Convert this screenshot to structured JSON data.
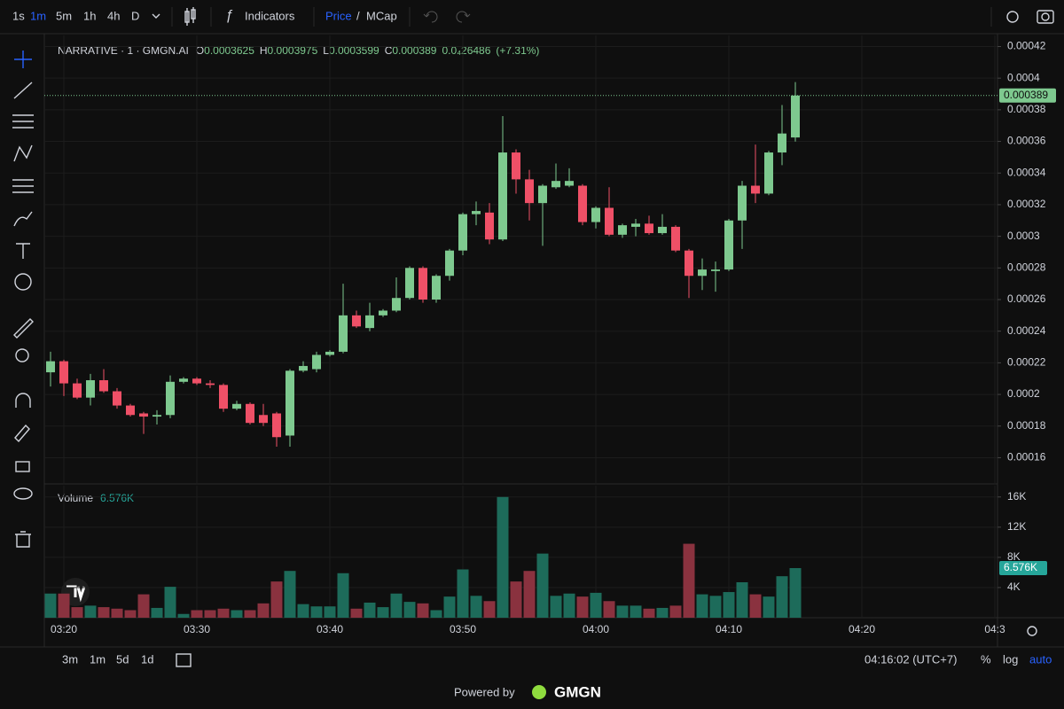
{
  "ui": {
    "intervals": [
      "1s",
      "1m",
      "5m",
      "1h",
      "4h",
      "D"
    ],
    "indicators": "Indicators",
    "price": "Price",
    "slash": "/",
    "mcap": "MCap",
    "ranges": [
      "3m",
      "1m",
      "5d",
      "1d"
    ],
    "clock": "04:16:02 (UTC+7)",
    "percent": "%",
    "log": "log",
    "auto": "auto",
    "powered_by": "Powered by",
    "brand": "GMGN"
  },
  "chart_data": {
    "type": "candlestick",
    "title": "NARRATIVE · 1 · GMGN.AI",
    "ohlc_labels": [
      "O",
      "H",
      "L",
      "C"
    ],
    "change": "0.0₄26486",
    "change_percent": "(+7.31%)",
    "volume_title": "Volume",
    "volume_value_label": "6.576K",
    "categories": [
      null,
      "03:20",
      null,
      null,
      null,
      null,
      null,
      null,
      null,
      null,
      null,
      "03:30",
      null,
      null,
      null,
      null,
      null,
      null,
      null,
      null,
      null,
      "03:40",
      null,
      null,
      null,
      null,
      null,
      null,
      null,
      null,
      null,
      "03:50",
      null,
      null,
      null,
      null,
      null,
      null,
      null,
      null,
      null,
      "04:00",
      null,
      null,
      null,
      null,
      null,
      null,
      null,
      null,
      null,
      "04:10",
      null,
      null,
      null,
      null,
      null
    ],
    "future_time_ticks": [
      "04:20",
      "04:3"
    ],
    "open": [
      0.000214,
      0.000221,
      0.000207,
      0.000198,
      0.000209,
      0.000202,
      0.000193,
      0.000188,
      0.000186,
      0.000187,
      0.000208,
      0.00021,
      0.000207,
      0.000206,
      0.000191,
      0.000194,
      0.000187,
      0.000188,
      0.000174,
      0.000215,
      0.000216,
      0.000225,
      0.000227,
      0.00025,
      0.000242,
      0.00025,
      0.000253,
      0.000261,
      0.00028,
      0.00026,
      0.000275,
      0.000291,
      0.000314,
      0.000315,
      0.000298,
      0.000353,
      0.000336,
      0.000321,
      0.000331,
      0.000332,
      0.000332,
      0.000309,
      0.000318,
      0.000301,
      0.000306,
      0.000308,
      0.000302,
      0.000306,
      0.000291,
      0.000275,
      0.000278,
      0.000279,
      0.00031,
      0.000332,
      0.000327,
      0.000353,
      0.0003625
    ],
    "high": [
      0.000227,
      0.000222,
      0.00021,
      0.000213,
      0.000216,
      0.000204,
      0.000194,
      0.000189,
      0.00019,
      0.000212,
      0.000211,
      0.000211,
      0.000209,
      0.000207,
      0.000196,
      0.000195,
      0.000194,
      0.000189,
      0.000216,
      0.000221,
      0.000227,
      0.000228,
      0.00027,
      0.000253,
      0.000258,
      0.000254,
      0.000274,
      0.000281,
      0.000281,
      0.000276,
      0.000292,
      0.000315,
      0.000322,
      0.000321,
      0.000376,
      0.000355,
      0.000342,
      0.000333,
      0.000346,
      0.000343,
      0.000333,
      0.000319,
      0.000331,
      0.000308,
      0.000311,
      0.000313,
      0.000314,
      0.000307,
      0.000292,
      0.000286,
      0.000284,
      0.000311,
      0.000335,
      0.000358,
      0.000354,
      0.000383,
      0.0003975
    ],
    "low": [
      0.000205,
      0.000199,
      0.000197,
      0.000193,
      0.000201,
      0.000191,
      0.000186,
      0.000175,
      0.000181,
      0.000185,
      0.000207,
      0.000206,
      0.000204,
      0.000189,
      0.00019,
      0.000181,
      0.00018,
      0.000167,
      0.000167,
      0.000214,
      0.000214,
      0.000224,
      0.000226,
      0.000242,
      0.00024,
      0.000249,
      0.000252,
      0.00026,
      0.000258,
      0.000258,
      0.000272,
      0.000288,
      0.000307,
      0.000295,
      0.000297,
      0.000327,
      0.00031,
      0.000294,
      0.00033,
      0.000331,
      0.000307,
      0.000305,
      0.0003,
      0.000299,
      0.0003,
      0.000301,
      0.000301,
      0.00029,
      0.000261,
      0.000266,
      0.000265,
      0.000278,
      0.000292,
      0.000321,
      0.000326,
      0.000345,
      0.0003599
    ],
    "close": [
      0.000221,
      0.000207,
      0.000198,
      0.000209,
      0.000202,
      0.000193,
      0.000187,
      0.000186,
      0.000187,
      0.000208,
      0.00021,
      0.000207,
      0.000206,
      0.000191,
      0.000194,
      0.000182,
      0.000182,
      0.000173,
      0.000215,
      0.000218,
      0.000225,
      0.000227,
      0.00025,
      0.000243,
      0.00025,
      0.000253,
      0.000261,
      0.00028,
      0.00026,
      0.000275,
      0.000291,
      0.000314,
      0.000316,
      0.000298,
      0.000353,
      0.000336,
      0.000321,
      0.000332,
      0.000335,
      0.000335,
      0.000309,
      0.000318,
      0.000301,
      0.000307,
      0.000308,
      0.000302,
      0.000306,
      0.000291,
      0.000275,
      0.000279,
      0.000279,
      0.00031,
      0.000332,
      0.000327,
      0.000353,
      0.000365,
      0.000389
    ],
    "volume": [
      3200,
      3200,
      1400,
      1600,
      1400,
      1200,
      1000,
      3100,
      1300,
      4100,
      500,
      1000,
      1000,
      1200,
      1000,
      1000,
      1900,
      4800,
      6200,
      1800,
      1500,
      1500,
      5900,
      1200,
      2000,
      1400,
      3200,
      2100,
      1900,
      1000,
      2800,
      6400,
      2900,
      2200,
      16000,
      4800,
      6200,
      8500,
      2900,
      3200,
      2800,
      3300,
      2200,
      1600,
      1600,
      1200,
      1300,
      1600,
      9800,
      3100,
      2900,
      3400,
      4700,
      3100,
      2800,
      5500,
      6576
    ],
    "ylim": [
      0.000144,
      0.000427
    ],
    "yticks": [
      0.00016,
      0.00018,
      0.0002,
      0.00022,
      0.00024,
      0.00026,
      0.00028,
      0.0003,
      0.00032,
      0.00034,
      0.00036,
      0.00038,
      0.0004,
      0.00042
    ],
    "volume_ylim": [
      0,
      17500
    ],
    "volume_yticks": [
      {
        "value": 4000,
        "label": "4K"
      },
      {
        "value": 8000,
        "label": "8K"
      },
      {
        "value": 12000,
        "label": "12K"
      },
      {
        "value": 16000,
        "label": "16K"
      }
    ],
    "grid": true,
    "up_color": "#7ec98f",
    "down_color": "#ef5067",
    "volume_up_color": "#1d6b5a",
    "volume_down_color": "#8a323f"
  }
}
